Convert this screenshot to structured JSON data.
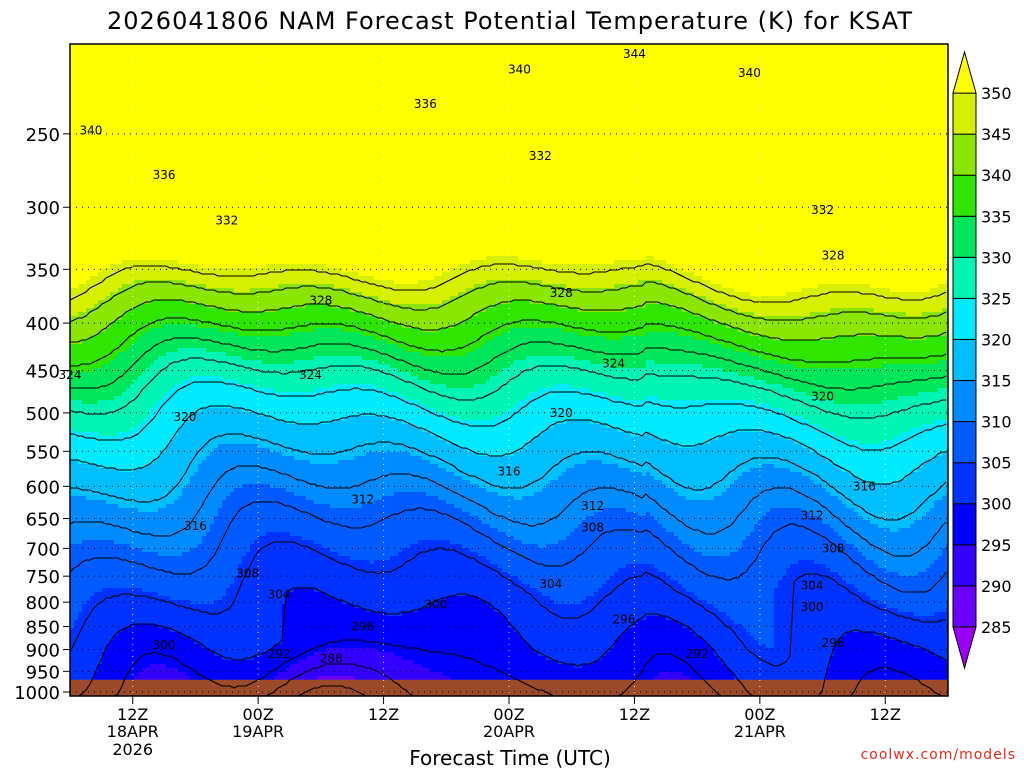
{
  "chart_data": {
    "type": "heatmap",
    "title": "2026041806 NAM Forecast Potential Temperature (K) for KSAT",
    "xlabel": "Forecast Time (UTC)",
    "ylabel": "",
    "credit": "coolwx.com/models",
    "y_axis": {
      "scale": "log",
      "unit": "hPa",
      "ticks": [
        250,
        300,
        350,
        400,
        450,
        500,
        550,
        600,
        650,
        700,
        750,
        800,
        850,
        900,
        950,
        1000
      ],
      "tick_labels": [
        "250",
        "300",
        "350",
        "400",
        "450",
        "500",
        "550",
        "600",
        "650",
        "700",
        "750",
        "800",
        "850",
        "900",
        "950",
        "1000"
      ],
      "range": [
        1010,
        200
      ]
    },
    "x_axis": {
      "range_hours": [
        0,
        84
      ],
      "ticks": [
        {
          "hour": 6,
          "label": "12Z",
          "sublabel": "18APR",
          "sublabel2": "2026"
        },
        {
          "hour": 18,
          "label": "00Z",
          "sublabel": "19APR",
          "sublabel2": ""
        },
        {
          "hour": 30,
          "label": "12Z",
          "sublabel": "",
          "sublabel2": ""
        },
        {
          "hour": 42,
          "label": "00Z",
          "sublabel": "20APR",
          "sublabel2": ""
        },
        {
          "hour": 54,
          "label": "12Z",
          "sublabel": "",
          "sublabel2": ""
        },
        {
          "hour": 66,
          "label": "00Z",
          "sublabel": "21APR",
          "sublabel2": ""
        },
        {
          "hour": 78,
          "label": "12Z",
          "sublabel": "",
          "sublabel2": ""
        }
      ]
    },
    "colorbar": {
      "levels": [
        285,
        290,
        295,
        300,
        305,
        310,
        315,
        320,
        325,
        330,
        335,
        340,
        345,
        350
      ],
      "colors": [
        "#9b00ff",
        "#6a00ff",
        "#3400ff",
        "#0000ff",
        "#0033ff",
        "#005cff",
        "#008cff",
        "#00bfff",
        "#00eaff",
        "#00f5b4",
        "#00e65a",
        "#2ee600",
        "#8ae600",
        "#d7ef00",
        "#ffff00"
      ]
    },
    "ground": {
      "color": "#9b4a2a",
      "pressure_top": 970
    },
    "contour_interval": 4,
    "contour_labels": [
      {
        "value": "344",
        "hour": 54,
        "p": 205
      },
      {
        "value": "340",
        "hour": 43,
        "p": 213
      },
      {
        "value": "340",
        "hour": 65,
        "p": 215
      },
      {
        "value": "340",
        "hour": 2,
        "p": 248
      },
      {
        "value": "336",
        "hour": 34,
        "p": 232
      },
      {
        "value": "336",
        "hour": 9,
        "p": 277
      },
      {
        "value": "332",
        "hour": 45,
        "p": 264
      },
      {
        "value": "332",
        "hour": 15,
        "p": 310
      },
      {
        "value": "332",
        "hour": 72,
        "p": 302
      },
      {
        "value": "328",
        "hour": 24,
        "p": 378
      },
      {
        "value": "328",
        "hour": 47,
        "p": 371
      },
      {
        "value": "328",
        "hour": 73,
        "p": 338
      },
      {
        "value": "324",
        "hour": 0,
        "p": 455
      },
      {
        "value": "324",
        "hour": 23,
        "p": 455
      },
      {
        "value": "324",
        "hour": 52,
        "p": 442
      },
      {
        "value": "320",
        "hour": 11,
        "p": 505
      },
      {
        "value": "320",
        "hour": 47,
        "p": 500
      },
      {
        "value": "320",
        "hour": 72,
        "p": 480
      },
      {
        "value": "316",
        "hour": 42,
        "p": 578
      },
      {
        "value": "316",
        "hour": 76,
        "p": 600
      },
      {
        "value": "316",
        "hour": 12,
        "p": 662
      },
      {
        "value": "312",
        "hour": 28,
        "p": 620
      },
      {
        "value": "312",
        "hour": 50,
        "p": 630
      },
      {
        "value": "312",
        "hour": 71,
        "p": 645
      },
      {
        "value": "308",
        "hour": 50,
        "p": 665
      },
      {
        "value": "308",
        "hour": 73,
        "p": 700
      },
      {
        "value": "308",
        "hour": 17,
        "p": 745
      },
      {
        "value": "304",
        "hour": 20,
        "p": 785
      },
      {
        "value": "304",
        "hour": 46,
        "p": 765
      },
      {
        "value": "304",
        "hour": 71,
        "p": 768
      },
      {
        "value": "300",
        "hour": 35,
        "p": 805
      },
      {
        "value": "300",
        "hour": 71,
        "p": 810
      },
      {
        "value": "300",
        "hour": 9,
        "p": 890
      },
      {
        "value": "296",
        "hour": 28,
        "p": 850
      },
      {
        "value": "296",
        "hour": 53,
        "p": 835
      },
      {
        "value": "296",
        "hour": 73,
        "p": 885
      },
      {
        "value": "292",
        "hour": 20,
        "p": 910
      },
      {
        "value": "292",
        "hour": 60,
        "p": 910
      },
      {
        "value": "288",
        "hour": 25,
        "p": 920
      }
    ]
  }
}
